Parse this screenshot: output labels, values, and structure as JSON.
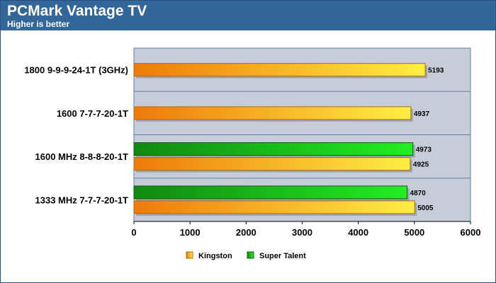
{
  "header": {
    "title": "PCMark Vantage TV",
    "subtitle": "Higher is better"
  },
  "colors": {
    "header_bg": "#336699",
    "plot_bg": "#c6ccd8",
    "grid": "#5d7fa8",
    "kingston_light": "#ffee44",
    "kingston_dark": "#ee7a0a",
    "super_talent_light": "#22ee22",
    "super_talent_dark": "#118811"
  },
  "chart_data": {
    "type": "bar",
    "orientation": "horizontal",
    "title": "PCMark Vantage TV",
    "subtitle": "Higher is better",
    "categories": [
      "1800 9-9-9-24-1T (3GHz)",
      "1600 7-7-7-20-1T",
      "1600 MHz 8-8-8-20-1T",
      "1333 MHz 7-7-7-20-1T"
    ],
    "series": [
      {
        "name": "Kingston",
        "values": [
          5193,
          4937,
          4925,
          5005
        ]
      },
      {
        "name": "Super Talent",
        "values": [
          null,
          null,
          4973,
          4870
        ]
      }
    ],
    "xlim": [
      0,
      6000
    ],
    "xticks": [
      0,
      1000,
      2000,
      3000,
      4000,
      5000,
      6000
    ],
    "grid": true,
    "legend": "bottom"
  }
}
